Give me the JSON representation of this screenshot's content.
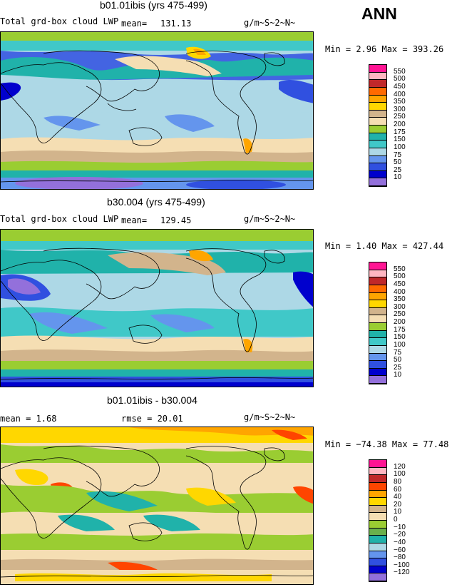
{
  "season": "ANN",
  "panels": [
    {
      "title": "b01.01ibis (yrs 475-499)",
      "var_label": "Total grd-box cloud LWP",
      "mean_label": "mean=",
      "mean_value": "131.13",
      "units": "g/m~S~2~N~",
      "minmax": "Min =    2.96 Max = 393.26",
      "legend": [
        "550",
        "500",
        "450",
        "400",
        "350",
        "300",
        "250",
        "200",
        "175",
        "150",
        "100",
        "75",
        "50",
        "25",
        "10"
      ],
      "colors": [
        "#ff1493",
        "#ffb6c1",
        "#c0282a",
        "#ff6a00",
        "#ffa500",
        "#ffd700",
        "#d2b48c",
        "#f5deb3",
        "#9acd32",
        "#20b2aa",
        "#40c8c8",
        "#add8e6",
        "#6495ed",
        "#3050e0",
        "#0000cd",
        "#9370db"
      ]
    },
    {
      "title": "b30.004 (yrs 475-499)",
      "var_label": "Total grd-box cloud LWP",
      "mean_label": "mean=",
      "mean_value": "129.45",
      "units": "g/m~S~2~N~",
      "minmax": "Min =    1.40 Max = 427.44",
      "legend": [
        "550",
        "500",
        "450",
        "400",
        "350",
        "300",
        "250",
        "200",
        "175",
        "150",
        "100",
        "75",
        "50",
        "25",
        "10"
      ],
      "colors": [
        "#ff1493",
        "#ffb6c1",
        "#c0282a",
        "#ff6a00",
        "#ffa500",
        "#ffd700",
        "#d2b48c",
        "#f5deb3",
        "#9acd32",
        "#20b2aa",
        "#40c8c8",
        "#add8e6",
        "#6495ed",
        "#3050e0",
        "#0000cd",
        "#9370db"
      ]
    },
    {
      "title": "b01.01ibis - b30.004",
      "mean_text": "mean =    1.68",
      "rmse_text": "rmse =   20.01",
      "units": "g/m~S~2~N~",
      "minmax": "Min = −74.38 Max =  77.48",
      "legend": [
        "120",
        "100",
        "80",
        "60",
        "40",
        "20",
        "10",
        "0",
        "−10",
        "−20",
        "−40",
        "−60",
        "−80",
        "−100",
        "−120"
      ],
      "colors": [
        "#ff1493",
        "#ffb6c1",
        "#c0282a",
        "#ff4500",
        "#ffa500",
        "#ffd700",
        "#d2b48c",
        "#f5deb3",
        "#9acd32",
        "#6ab04c",
        "#20b2aa",
        "#add8e6",
        "#6495ed",
        "#3050e0",
        "#0000cd",
        "#9370db"
      ]
    }
  ]
}
